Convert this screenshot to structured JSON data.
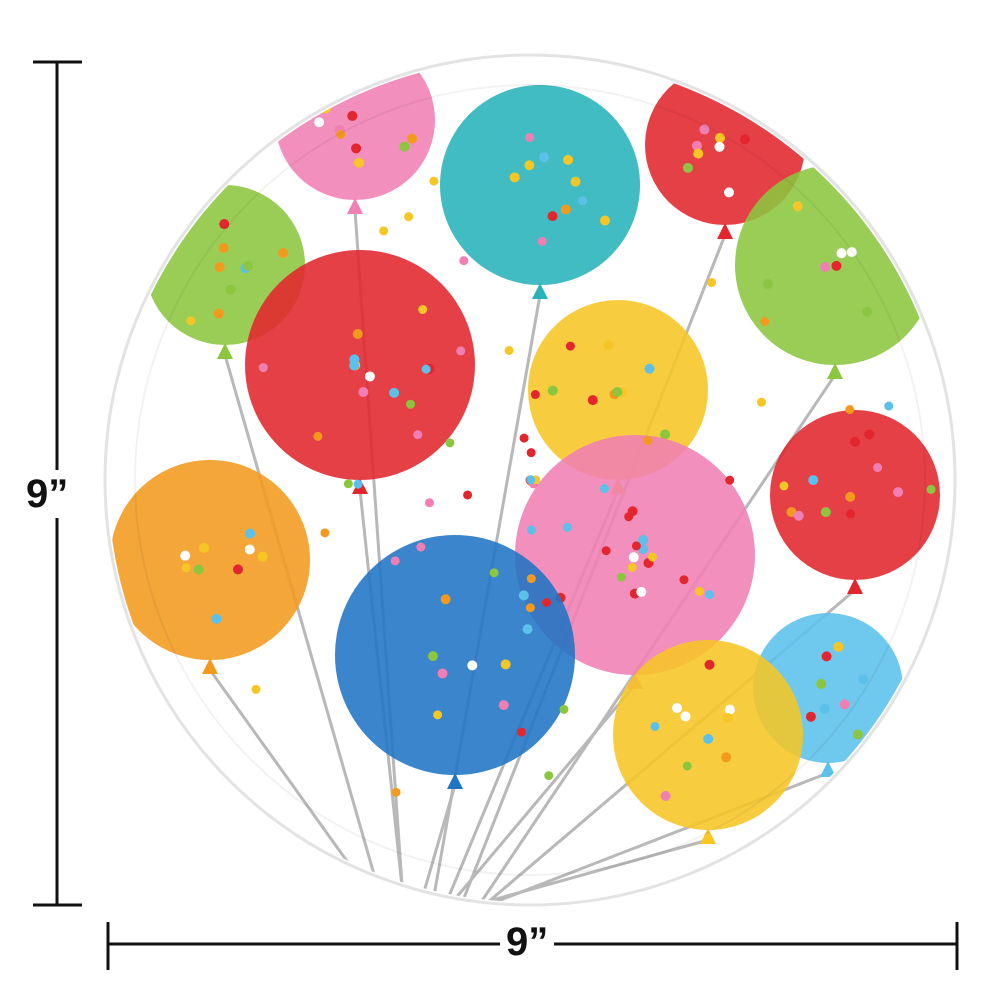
{
  "dimensions": {
    "height_label": "9”",
    "width_label": "9”"
  },
  "colors": {
    "plate": "#ffffff",
    "plate_rim": "#e6e6e6",
    "dimension_line": "#111111",
    "string": "#b8b8b8",
    "balloons": [
      "#f07fb4",
      "#27b3b9",
      "#e3262e",
      "#8cc63f",
      "#f6c624",
      "#f39a1e",
      "#1f74c4",
      "#5bc0ea"
    ]
  }
}
